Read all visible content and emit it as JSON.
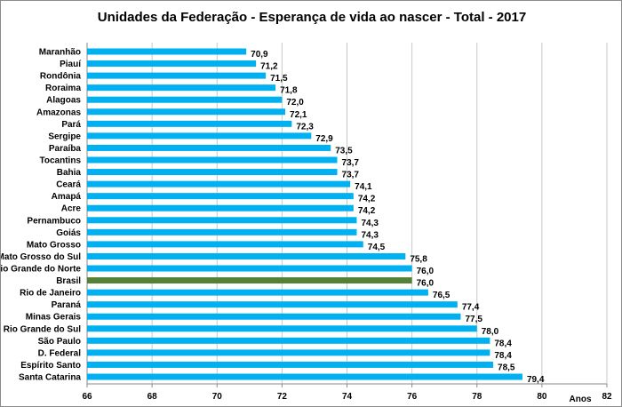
{
  "chart_data": {
    "type": "bar",
    "orientation": "horizontal",
    "title": "Unidades da Federação - Esperança de vida ao nascer - Total - 2017",
    "xlabel": "Anos",
    "ylabel": "",
    "xlim": [
      66,
      82
    ],
    "xticks": [
      "66",
      "68",
      "70",
      "72",
      "74",
      "76",
      "78",
      "80",
      "82"
    ],
    "grid": "vertical",
    "colors": {
      "default": "#00b0f0",
      "highlight": "#538135"
    },
    "highlight_category": "Brasil",
    "categories": [
      "Maranhão",
      "Piauí",
      "Rondônia",
      "Roraima",
      "Alagoas",
      "Amazonas",
      "Pará",
      "Sergipe",
      "Paraíba",
      "Tocantins",
      "Bahia",
      "Ceará",
      "Amapá",
      "Acre",
      "Pernambuco",
      "Goiás",
      "Mato Grosso",
      "Mato Grosso do Sul",
      "Rio Grande do Norte",
      "Brasil",
      "Rio de Janeiro",
      "Paraná",
      "Minas Gerais",
      "Rio Grande do Sul",
      "São Paulo",
      "D. Federal",
      "Espírito Santo",
      "Santa Catarina"
    ],
    "values": [
      70.9,
      71.2,
      71.5,
      71.8,
      72.0,
      72.1,
      72.3,
      72.9,
      73.5,
      73.7,
      73.7,
      74.1,
      74.2,
      74.2,
      74.3,
      74.3,
      74.5,
      75.8,
      76.0,
      76.0,
      76.5,
      77.4,
      77.5,
      78.0,
      78.4,
      78.4,
      78.5,
      79.4
    ],
    "value_labels": [
      "70,9",
      "71,2",
      "71,5",
      "71,8",
      "72,0",
      "72,1",
      "72,3",
      "72,9",
      "73,5",
      "73,7",
      "73,7",
      "74,1",
      "74,2",
      "74,2",
      "74,3",
      "74,3",
      "74,5",
      "75,8",
      "76,0",
      "76,0",
      "76,5",
      "77,4",
      "77,5",
      "78,0",
      "78,4",
      "78,4",
      "78,5",
      "79,4"
    ]
  }
}
